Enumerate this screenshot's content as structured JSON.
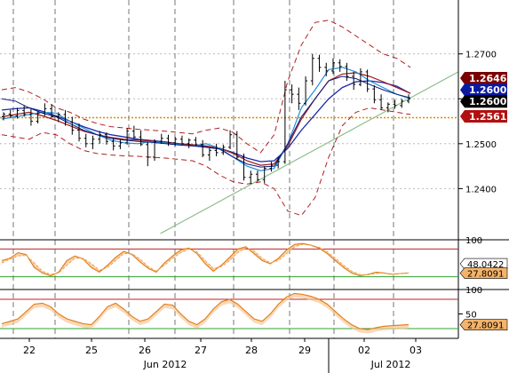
{
  "chart_data": {
    "type": "candlestick",
    "main": {
      "x_labels": [
        "22",
        "25",
        "26",
        "27",
        "28",
        "29",
        "02",
        "03"
      ],
      "month_labels": [
        "Jun 2012",
        "Jul 2012"
      ],
      "y_ticks": [
        "1.2700",
        "1.2600",
        "1.2500",
        "1.2400"
      ],
      "y_values": [
        1.27,
        1.26,
        1.25,
        1.24
      ],
      "ylim": [
        1.229,
        1.282
      ],
      "price_tags": [
        {
          "label": "1.2646",
          "value": 1.2646,
          "color": "#7a0000"
        },
        {
          "label": "1.2600",
          "value": 1.2602,
          "color": "#0a1aa0"
        },
        {
          "label": "1.2600",
          "value": 1.26,
          "color": "#000000"
        },
        {
          "label": "1.2561",
          "value": 1.2561,
          "color": "#b21010"
        }
      ],
      "horizontal_level": 1.2558,
      "candles": [
        [
          1.256,
          1.257,
          1.2552,
          1.2566
        ],
        [
          1.2566,
          1.2575,
          1.2558,
          1.2562
        ],
        [
          1.2562,
          1.258,
          1.2556,
          1.2574
        ],
        [
          1.2574,
          1.2585,
          1.256,
          1.2565
        ],
        [
          1.2565,
          1.2577,
          1.254,
          1.255
        ],
        [
          1.255,
          1.2572,
          1.2545,
          1.2568
        ],
        [
          1.2568,
          1.259,
          1.2562,
          1.2578
        ],
        [
          1.2578,
          1.2588,
          1.2558,
          1.256
        ],
        [
          1.256,
          1.257,
          1.2548,
          1.2565
        ],
        [
          1.2565,
          1.2575,
          1.254,
          1.2548
        ],
        [
          1.2548,
          1.256,
          1.252,
          1.253
        ],
        [
          1.253,
          1.2545,
          1.2505,
          1.2512
        ],
        [
          1.2512,
          1.2522,
          1.2492,
          1.25
        ],
        [
          1.25,
          1.2518,
          1.2488,
          1.251
        ],
        [
          1.251,
          1.2528,
          1.25,
          1.252
        ],
        [
          1.252,
          1.2525,
          1.2498,
          1.2505
        ],
        [
          1.2505,
          1.2512,
          1.2485,
          1.2495
        ],
        [
          1.2495,
          1.251,
          1.2488,
          1.2502
        ],
        [
          1.2502,
          1.2535,
          1.2498,
          1.2528
        ],
        [
          1.2528,
          1.254,
          1.251,
          1.2515
        ],
        [
          1.2515,
          1.253,
          1.2495,
          1.2498
        ],
        [
          1.2498,
          1.2505,
          1.245,
          1.247
        ],
        [
          1.247,
          1.251,
          1.2462,
          1.2505
        ],
        [
          1.2505,
          1.2522,
          1.25,
          1.2512
        ],
        [
          1.2512,
          1.252,
          1.2495,
          1.2502
        ],
        [
          1.2502,
          1.2515,
          1.2495,
          1.251
        ],
        [
          1.251,
          1.2518,
          1.2498,
          1.25
        ],
        [
          1.25,
          1.2512,
          1.249,
          1.2508
        ],
        [
          1.2508,
          1.2515,
          1.2495,
          1.2498
        ],
        [
          1.2498,
          1.2508,
          1.247,
          1.2475
        ],
        [
          1.2475,
          1.249,
          1.2462,
          1.2485
        ],
        [
          1.2485,
          1.25,
          1.2472,
          1.248
        ],
        [
          1.248,
          1.2498,
          1.2475,
          1.2492
        ],
        [
          1.2492,
          1.253,
          1.2488,
          1.252
        ],
        [
          1.252,
          1.2528,
          1.2465,
          1.247
        ],
        [
          1.247,
          1.2478,
          1.2418,
          1.2425
        ],
        [
          1.2425,
          1.244,
          1.241,
          1.2432
        ],
        [
          1.2432,
          1.244,
          1.2415,
          1.242
        ],
        [
          1.242,
          1.245,
          1.2412,
          1.2445
        ],
        [
          1.2445,
          1.246,
          1.2438,
          1.2452
        ],
        [
          1.2452,
          1.247,
          1.2445,
          1.246
        ],
        [
          1.246,
          1.264,
          1.2455,
          1.262
        ],
        [
          1.262,
          1.2632,
          1.259,
          1.261
        ],
        [
          1.261,
          1.2625,
          1.2575,
          1.259
        ],
        [
          1.259,
          1.265,
          1.2585,
          1.264
        ],
        [
          1.264,
          1.27,
          1.263,
          1.269
        ],
        [
          1.269,
          1.2698,
          1.266,
          1.267
        ],
        [
          1.267,
          1.268,
          1.265,
          1.2662
        ],
        [
          1.2662,
          1.269,
          1.2655,
          1.268
        ],
        [
          1.268,
          1.2688,
          1.266,
          1.2672
        ],
        [
          1.2672,
          1.268,
          1.264,
          1.265
        ],
        [
          1.265,
          1.266,
          1.262,
          1.2632
        ],
        [
          1.2632,
          1.2668,
          1.2628,
          1.266
        ],
        [
          1.266,
          1.2665,
          1.2615,
          1.2622
        ],
        [
          1.2622,
          1.263,
          1.259,
          1.2598
        ],
        [
          1.2598,
          1.261,
          1.2575,
          1.258
        ],
        [
          1.258,
          1.2592,
          1.257,
          1.2588
        ],
        [
          1.2588,
          1.2598,
          1.2578,
          1.2585
        ],
        [
          1.2585,
          1.26,
          1.258,
          1.2595
        ],
        [
          1.2595,
          1.261,
          1.259,
          1.26
        ]
      ],
      "ma_fast": [
        1.2555,
        1.256,
        1.2565,
        1.257,
        1.2568,
        1.255,
        1.2535,
        1.252,
        1.2508,
        1.2502,
        1.25,
        1.2505,
        1.2502,
        1.2498,
        1.2495,
        1.25,
        1.249,
        1.247,
        1.245,
        1.244,
        1.2445,
        1.25,
        1.258,
        1.262,
        1.2665,
        1.267,
        1.266,
        1.264,
        1.2625,
        1.261,
        1.26
      ],
      "ma_mid": [
        1.26,
        1.2595,
        1.258,
        1.2568,
        1.256,
        1.2545,
        1.253,
        1.252,
        1.2512,
        1.2508,
        1.2505,
        1.2503,
        1.25,
        1.2497,
        1.2495,
        1.2492,
        1.2488,
        1.247,
        1.2455,
        1.2448,
        1.245,
        1.25,
        1.256,
        1.26,
        1.264,
        1.265,
        1.2645,
        1.2632,
        1.262,
        1.261,
        1.2602
      ],
      "ma_slow": [
        1.2575,
        1.2578,
        1.258,
        1.2572,
        1.2562,
        1.255,
        1.2538,
        1.2528,
        1.252,
        1.2515,
        1.251,
        1.2507,
        1.2504,
        1.25,
        1.2497,
        1.2494,
        1.249,
        1.248,
        1.2468,
        1.246,
        1.2462,
        1.249,
        1.253,
        1.2565,
        1.26,
        1.2625,
        1.2638,
        1.264,
        1.2636,
        1.2628,
        1.2612
      ],
      "ma_red": [
        1.256,
        1.2565,
        1.257,
        1.2562,
        1.2552,
        1.254,
        1.2528,
        1.252,
        1.2514,
        1.251,
        1.2508,
        1.2506,
        1.2503,
        1.25,
        1.2498,
        1.2495,
        1.249,
        1.2478,
        1.2462,
        1.2452,
        1.2455,
        1.2495,
        1.2555,
        1.26,
        1.264,
        1.2655,
        1.2658,
        1.265,
        1.2638,
        1.2625,
        1.2612
      ],
      "band_upper": [
        1.262,
        1.2625,
        1.2615,
        1.26,
        1.258,
        1.257,
        1.2555,
        1.2545,
        1.2538,
        1.2535,
        1.2532,
        1.253,
        1.2528,
        1.2525,
        1.2522,
        1.253,
        1.2535,
        1.2525,
        1.25,
        1.248,
        1.252,
        1.264,
        1.272,
        1.277,
        1.2775,
        1.276,
        1.274,
        1.272,
        1.27,
        1.269,
        1.267
      ],
      "band_lower": [
        1.252,
        1.2515,
        1.251,
        1.2525,
        1.252,
        1.25,
        1.2485,
        1.2478,
        1.2475,
        1.2473,
        1.2472,
        1.247,
        1.2468,
        1.2465,
        1.2462,
        1.245,
        1.243,
        1.2415,
        1.241,
        1.2415,
        1.24,
        1.235,
        1.234,
        1.238,
        1.247,
        1.254,
        1.257,
        1.258,
        1.2575,
        1.257,
        1.2565
      ],
      "trendline": {
        "from": [
          0.35,
          1.23
        ],
        "to": [
          1.0,
          1.266
        ]
      }
    },
    "indicator1": {
      "y_ticks": [
        "100"
      ],
      "value_tags": [
        {
          "label": "48.0422",
          "color": "#ffffff"
        },
        {
          "label": "27.8091",
          "color": "#f4b36a"
        }
      ],
      "levels": [
        80,
        20
      ],
      "ylim": [
        0,
        100
      ],
      "series_k": [
        55,
        60,
        72,
        68,
        40,
        28,
        22,
        30,
        55,
        65,
        58,
        40,
        30,
        45,
        62,
        75,
        68,
        52,
        38,
        30,
        50,
        65,
        78,
        82,
        70,
        48,
        32,
        45,
        62,
        80,
        85,
        70,
        55,
        48,
        60,
        78,
        90,
        92,
        88,
        82,
        70,
        55,
        40,
        28,
        22,
        25,
        30,
        28,
        25,
        27,
        28
      ],
      "series_d": [
        50,
        58,
        65,
        66,
        50,
        32,
        25,
        28,
        45,
        60,
        60,
        48,
        34,
        40,
        55,
        70,
        70,
        58,
        42,
        32,
        45,
        60,
        72,
        80,
        74,
        55,
        38,
        42,
        55,
        72,
        82,
        76,
        60,
        50,
        55,
        70,
        85,
        90,
        88,
        84,
        74,
        60,
        45,
        32,
        25,
        24,
        27,
        28,
        26,
        27,
        28
      ]
    },
    "indicator2": {
      "y_ticks": [
        "100",
        "50"
      ],
      "value_tags": [
        {
          "label": "27.8091",
          "color": "#f4b36a"
        }
      ],
      "levels": [
        80,
        20
      ],
      "ylim": [
        0,
        100
      ],
      "series_k": [
        30,
        35,
        40,
        55,
        70,
        72,
        65,
        50,
        40,
        35,
        30,
        28,
        45,
        65,
        72,
        60,
        45,
        35,
        40,
        55,
        70,
        68,
        50,
        35,
        28,
        40,
        60,
        75,
        80,
        70,
        55,
        40,
        35,
        50,
        70,
        85,
        92,
        90,
        86,
        80,
        70,
        55,
        40,
        28,
        20,
        18,
        22,
        25,
        26,
        27,
        28
      ]
    },
    "bottom_labels": [
      "22",
      "25",
      "26",
      "27",
      "28",
      "29",
      "02",
      "03"
    ]
  }
}
